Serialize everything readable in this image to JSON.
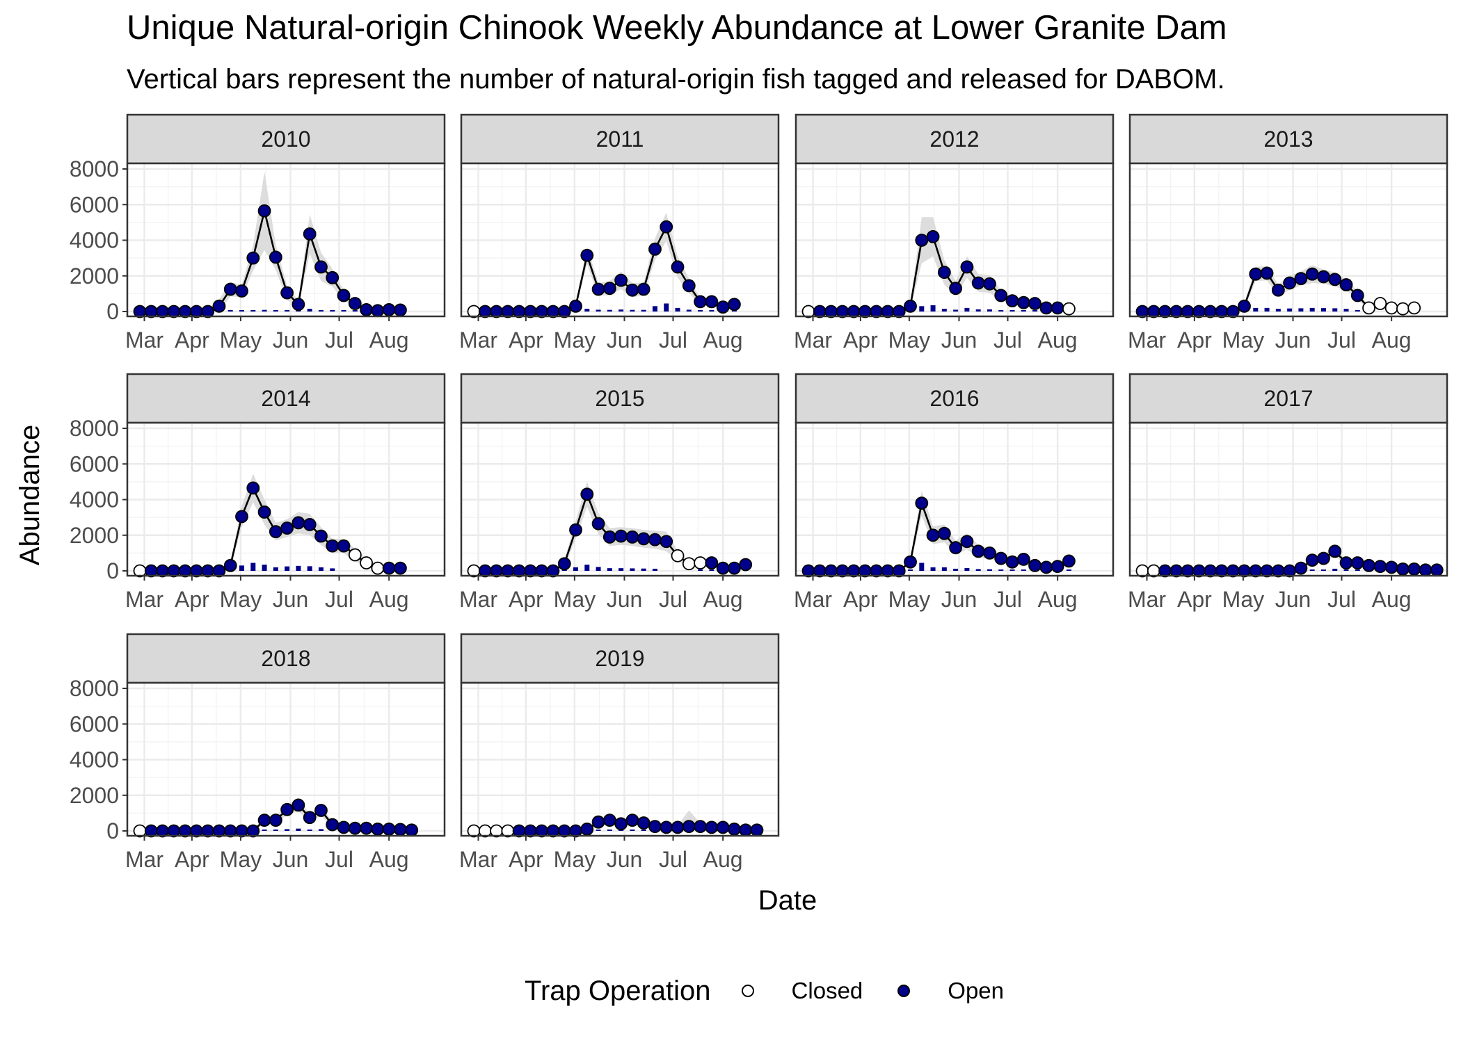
{
  "title": "Unique Natural-origin Chinook Weekly Abundance at Lower Granite Dam",
  "subtitle": "Vertical bars represent the number of natural-origin fish tagged and released for DABOM.",
  "legend": {
    "title": "Trap Operation",
    "items": [
      {
        "label": "Closed",
        "fill": "#ffffff"
      },
      {
        "label": "Open",
        "fill": "#00008b"
      }
    ]
  },
  "colors": {
    "open": "#00008b",
    "closed": "#ffffff",
    "line": "#000000",
    "ribbon": "#d9d9d9",
    "bars": "#00008b",
    "strip": "#d9d9d9"
  },
  "chart_data": {
    "type": "line",
    "xlabel": "Date",
    "ylabel": "Abundance",
    "ylim": [
      0,
      8000
    ],
    "yticks": [
      0,
      2000,
      4000,
      6000,
      8000
    ],
    "x_tick_labels": [
      "Mar",
      "Apr",
      "May",
      "Jun",
      "Jul",
      "Aug"
    ],
    "x_unit": "week of year",
    "grid": true,
    "legend_position": "bottom",
    "facets": [
      {
        "year": "2010",
        "x_start": 9,
        "est": [
          0,
          0,
          0,
          0,
          0,
          0,
          0,
          300,
          1250,
          1150,
          3000,
          5650,
          3050,
          1050,
          400,
          4350,
          2500,
          1900,
          900,
          450,
          100,
          50,
          100,
          80
        ],
        "ci": [
          0,
          0,
          0,
          0,
          0,
          0,
          0,
          400,
          400,
          350,
          700,
          2200,
          700,
          400,
          200,
          1100,
          800,
          500,
          300,
          150,
          50,
          40,
          40,
          30
        ],
        "trap": "OOOOOOOOOOOOOOOOOOOOOOOO",
        "tagged": [
          0,
          0,
          0,
          0,
          0,
          0,
          0,
          10,
          30,
          40,
          60,
          90,
          60,
          30,
          20,
          150,
          80,
          50,
          30,
          20,
          10,
          5,
          5,
          5
        ]
      },
      {
        "year": "2011",
        "x_start": 9,
        "est": [
          0,
          0,
          0,
          0,
          0,
          0,
          0,
          0,
          0,
          300,
          3150,
          1250,
          1300,
          1750,
          1200,
          1250,
          3500,
          4750,
          2500,
          1450,
          550,
          550,
          250,
          400
        ],
        "ci": [
          0,
          0,
          0,
          0,
          0,
          0,
          0,
          0,
          0,
          150,
          500,
          350,
          400,
          500,
          400,
          350,
          600,
          800,
          600,
          400,
          200,
          200,
          100,
          150
        ],
        "trap": "COOOOOOOOOOOOOOOOOOOOOOO",
        "tagged": [
          0,
          0,
          0,
          0,
          0,
          0,
          0,
          0,
          0,
          20,
          150,
          100,
          90,
          110,
          90,
          90,
          300,
          450,
          200,
          100,
          40,
          40,
          20,
          30
        ]
      },
      {
        "year": "2012",
        "x_start": 9,
        "est": [
          0,
          0,
          0,
          0,
          0,
          0,
          0,
          0,
          0,
          300,
          4000,
          4200,
          2200,
          1300,
          2500,
          1600,
          1550,
          900,
          600,
          500,
          450,
          200,
          200,
          150
        ],
        "ci": [
          0,
          0,
          0,
          0,
          0,
          0,
          0,
          0,
          0,
          150,
          1300,
          1100,
          700,
          400,
          600,
          500,
          500,
          300,
          200,
          150,
          150,
          100,
          100,
          50
        ],
        "trap": "COOOOOOOOOOOOOOOOOOOOOOC",
        "tagged": [
          0,
          0,
          0,
          0,
          0,
          0,
          0,
          0,
          0,
          20,
          300,
          350,
          150,
          100,
          200,
          120,
          120,
          60,
          40,
          30,
          30,
          20,
          20,
          0
        ]
      },
      {
        "year": "2013",
        "x_start": 9,
        "est": [
          0,
          0,
          0,
          0,
          0,
          0,
          0,
          0,
          0,
          300,
          2100,
          2150,
          1200,
          1600,
          1850,
          2100,
          1950,
          1800,
          1500,
          900,
          200,
          450,
          200,
          150,
          200
        ],
        "ci": [
          0,
          0,
          0,
          0,
          0,
          0,
          0,
          0,
          0,
          150,
          400,
          400,
          300,
          400,
          400,
          500,
          400,
          400,
          300,
          250,
          100,
          150,
          100,
          50,
          50
        ],
        "trap": "OOOOOOOOOOOOOOOOOOOOCCCCC",
        "tagged": [
          0,
          0,
          0,
          0,
          0,
          0,
          0,
          0,
          0,
          20,
          200,
          200,
          150,
          170,
          180,
          200,
          190,
          180,
          150,
          80,
          0,
          0,
          0,
          0,
          0
        ]
      },
      {
        "year": "2014",
        "x_start": 9,
        "est": [
          0,
          0,
          0,
          0,
          0,
          0,
          0,
          0,
          300,
          3050,
          4650,
          3300,
          2200,
          2400,
          2700,
          2600,
          1950,
          1400,
          1400,
          900,
          450,
          150,
          150,
          150
        ],
        "ci": [
          0,
          0,
          0,
          0,
          0,
          0,
          0,
          0,
          150,
          600,
          800,
          700,
          500,
          500,
          600,
          600,
          500,
          400,
          400,
          350,
          250,
          100,
          100,
          100
        ],
        "trap": "COOOOOOOOOOOOOOOOOOCCCOO",
        "tagged": [
          0,
          0,
          0,
          0,
          0,
          0,
          0,
          0,
          20,
          300,
          450,
          350,
          200,
          250,
          280,
          260,
          200,
          140,
          0,
          0,
          0,
          0,
          10,
          10
        ]
      },
      {
        "year": "2015",
        "x_start": 9,
        "est": [
          0,
          0,
          0,
          0,
          0,
          0,
          0,
          0,
          400,
          2300,
          4300,
          2650,
          1900,
          1950,
          1900,
          1800,
          1750,
          1650,
          850,
          400,
          450,
          450,
          150,
          150,
          350
        ],
        "ci": [
          0,
          0,
          0,
          0,
          0,
          0,
          0,
          0,
          200,
          500,
          700,
          600,
          500,
          500,
          500,
          500,
          500,
          550,
          300,
          150,
          150,
          150,
          100,
          100,
          100
        ],
        "trap": "COOOOOOOOOOOOOOOOOCCCOOOO",
        "tagged": [
          0,
          0,
          0,
          0,
          0,
          0,
          0,
          0,
          20,
          200,
          350,
          220,
          150,
          150,
          140,
          130,
          120,
          0,
          0,
          0,
          30,
          30,
          10,
          10,
          20
        ]
      },
      {
        "year": "2016",
        "x_start": 9,
        "est": [
          0,
          0,
          0,
          0,
          0,
          0,
          0,
          0,
          0,
          500,
          3800,
          2000,
          2100,
          1300,
          1650,
          1100,
          1000,
          700,
          500,
          650,
          300,
          200,
          250,
          550
        ],
        "ci": [
          0,
          0,
          0,
          0,
          0,
          0,
          0,
          0,
          0,
          200,
          700,
          500,
          500,
          400,
          450,
          350,
          300,
          250,
          200,
          200,
          150,
          100,
          100,
          150
        ],
        "trap": "OOOOOOOOOOOOOOOOOOOOOOOO",
        "tagged": [
          0,
          0,
          0,
          0,
          0,
          0,
          0,
          0,
          0,
          30,
          450,
          200,
          200,
          120,
          160,
          100,
          90,
          60,
          40,
          50,
          20,
          20,
          20,
          40
        ]
      },
      {
        "year": "2017",
        "x_start": 9,
        "est": [
          0,
          0,
          0,
          0,
          0,
          0,
          0,
          0,
          0,
          0,
          0,
          0,
          0,
          0,
          150,
          600,
          700,
          1100,
          450,
          450,
          300,
          250,
          200,
          100,
          100,
          50,
          50
        ],
        "ci": [
          0,
          0,
          0,
          0,
          0,
          0,
          0,
          0,
          0,
          0,
          0,
          0,
          0,
          0,
          100,
          150,
          200,
          250,
          150,
          150,
          100,
          100,
          80,
          50,
          50,
          30,
          30
        ],
        "trap": "CCOOOOOOOOOOOOOOOOOOOOOOOOO",
        "tagged": [
          0,
          0,
          0,
          0,
          0,
          0,
          0,
          0,
          0,
          0,
          0,
          0,
          0,
          0,
          10,
          60,
          70,
          120,
          40,
          40,
          30,
          20,
          20,
          10,
          10,
          5,
          5
        ]
      },
      {
        "year": "2018",
        "x_start": 9,
        "est": [
          0,
          0,
          0,
          0,
          0,
          0,
          0,
          0,
          0,
          0,
          0,
          600,
          600,
          1200,
          1450,
          750,
          1150,
          350,
          200,
          150,
          150,
          100,
          100,
          80,
          50
        ],
        "ci": [
          0,
          0,
          0,
          0,
          0,
          0,
          0,
          0,
          0,
          0,
          0,
          200,
          200,
          300,
          350,
          200,
          300,
          150,
          100,
          80,
          80,
          50,
          50,
          40,
          30
        ],
        "trap": "COOOOOOOOOOOOOOOOOOOOOOOO",
        "tagged": [
          0,
          0,
          0,
          0,
          0,
          0,
          0,
          0,
          0,
          0,
          0,
          50,
          50,
          100,
          130,
          70,
          100,
          30,
          20,
          10,
          10,
          10,
          10,
          5,
          5
        ]
      },
      {
        "year": "2019",
        "x_start": 9,
        "est": [
          0,
          0,
          0,
          0,
          0,
          0,
          0,
          0,
          0,
          0,
          100,
          500,
          600,
          400,
          600,
          450,
          250,
          200,
          200,
          250,
          250,
          200,
          200,
          100,
          50,
          50
        ],
        "ci": [
          0,
          0,
          0,
          0,
          0,
          0,
          0,
          0,
          0,
          0,
          50,
          150,
          150,
          150,
          150,
          150,
          100,
          100,
          100,
          900,
          200,
          100,
          100,
          50,
          30,
          30
        ],
        "trap": "CCCCOOOOOOOOOOOOOOOOOOOOOO",
        "tagged": [
          0,
          0,
          0,
          0,
          0,
          0,
          0,
          0,
          0,
          0,
          10,
          40,
          50,
          30,
          50,
          40,
          20,
          20,
          20,
          20,
          20,
          20,
          20,
          10,
          5,
          5
        ]
      }
    ]
  }
}
